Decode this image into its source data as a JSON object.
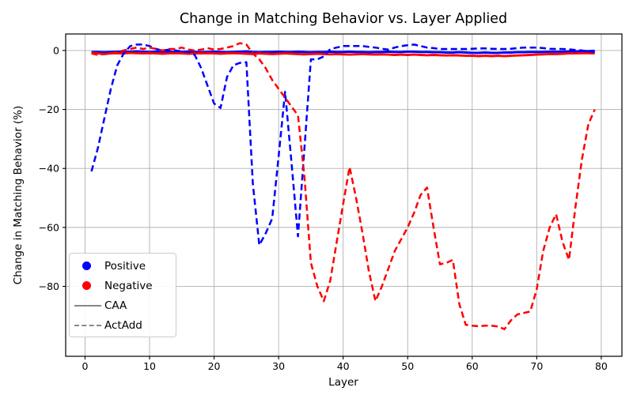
{
  "figure": {
    "title": "Change in Matching Behavior vs. Layer Applied",
    "xlabel": "Layer",
    "ylabel": "Change in Matching Behavior (%)"
  },
  "legend": {
    "entries": [
      {
        "label": "Positive",
        "marker": "dot",
        "color": "#0000ff"
      },
      {
        "label": "Negative",
        "marker": "dot",
        "color": "#ff0000"
      },
      {
        "label": "CAA",
        "marker": "line-solid",
        "color": "#888888"
      },
      {
        "label": "ActAdd",
        "marker": "line-dashed",
        "color": "#888888"
      }
    ]
  },
  "chart_data": {
    "type": "line",
    "title": "Change in Matching Behavior vs. Layer Applied",
    "xlabel": "Layer",
    "ylabel": "Change in Matching Behavior (%)",
    "grid": true,
    "legend_position": "lower left",
    "x_ticks": [
      0,
      10,
      20,
      30,
      40,
      50,
      60,
      70,
      80
    ],
    "y_ticks": {
      "values": [
        0,
        -20,
        -40,
        -60,
        -80
      ],
      "labels": [
        "0",
        "−20",
        "−40",
        "−60",
        "−80"
      ]
    },
    "xlim": [
      -3,
      83.2
    ],
    "ylim": [
      -103.7,
      5.6
    ],
    "x": [
      1,
      2,
      3,
      4,
      5,
      6,
      7,
      8,
      9,
      10,
      11,
      12,
      13,
      14,
      15,
      16,
      17,
      18,
      19,
      20,
      21,
      22,
      23,
      24,
      25,
      26,
      27,
      28,
      29,
      30,
      31,
      32,
      33,
      34,
      35,
      36,
      37,
      38,
      39,
      40,
      41,
      42,
      43,
      44,
      45,
      46,
      47,
      48,
      49,
      50,
      51,
      52,
      53,
      54,
      55,
      56,
      57,
      58,
      59,
      60,
      61,
      62,
      63,
      64,
      65,
      66,
      67,
      68,
      69,
      70,
      71,
      72,
      73,
      74,
      75,
      76,
      77,
      78,
      79
    ],
    "series": [
      {
        "name": "Positive CAA",
        "color": "#0000ff",
        "style": "solid",
        "values": [
          -0.5,
          -0.5,
          -0.6,
          -0.5,
          -0.4,
          -0.5,
          -0.4,
          -0.3,
          -0.4,
          -0.5,
          -0.4,
          -0.3,
          -0.4,
          -0.5,
          -0.5,
          -0.4,
          -0.5,
          -0.6,
          -0.5,
          -0.4,
          -0.5,
          -0.6,
          -0.5,
          -0.4,
          -0.3,
          -0.5,
          -0.6,
          -0.5,
          -0.5,
          -0.4,
          -0.5,
          -0.5,
          -0.4,
          -0.5,
          -0.6,
          -0.5,
          -0.5,
          -0.4,
          -0.5,
          -0.5,
          -0.4,
          -0.5,
          -0.5,
          -0.6,
          -0.5,
          -0.5,
          -0.4,
          -0.5,
          -0.5,
          -0.4,
          -0.4,
          -0.5,
          -0.5,
          -0.6,
          -0.6,
          -0.7,
          -0.7,
          -0.6,
          -0.7,
          -0.8,
          -0.8,
          -0.7,
          -0.8,
          -0.8,
          -0.7,
          -0.7,
          -0.6,
          -0.6,
          -0.5,
          -0.5,
          -0.5,
          -0.4,
          -0.4,
          -0.4,
          -0.3,
          -0.3,
          -0.2,
          -0.2,
          -0.1
        ]
      },
      {
        "name": "Negative CAA",
        "color": "#ff0000",
        "style": "solid",
        "values": [
          -0.8,
          -1.0,
          -1.2,
          -1.0,
          -0.9,
          -1.0,
          -0.8,
          -0.9,
          -1.0,
          -0.9,
          -1.0,
          -1.1,
          -1.0,
          -0.9,
          -1.0,
          -1.1,
          -1.0,
          -1.0,
          -0.9,
          -1.0,
          -1.1,
          -1.0,
          -0.9,
          -1.0,
          -1.1,
          -1.2,
          -1.0,
          -1.1,
          -1.2,
          -1.1,
          -1.0,
          -1.1,
          -1.2,
          -1.3,
          -1.2,
          -1.1,
          -1.2,
          -1.3,
          -1.2,
          -1.3,
          -1.4,
          -1.3,
          -1.2,
          -1.3,
          -1.4,
          -1.3,
          -1.4,
          -1.5,
          -1.4,
          -1.5,
          -1.4,
          -1.5,
          -1.6,
          -1.5,
          -1.6,
          -1.7,
          -1.6,
          -1.7,
          -1.8,
          -1.8,
          -1.9,
          -1.8,
          -1.9,
          -1.8,
          -1.9,
          -1.8,
          -1.7,
          -1.6,
          -1.5,
          -1.4,
          -1.3,
          -1.2,
          -1.2,
          -1.1,
          -1.0,
          -1.0,
          -0.9,
          -0.9,
          -1.0
        ]
      },
      {
        "name": "Positive ActAdd",
        "color": "#0000ff",
        "style": "dashed",
        "values": [
          -41,
          -33,
          -23,
          -13,
          -5,
          -1,
          1.5,
          2,
          2,
          1.5,
          0.5,
          0,
          0.3,
          0,
          -0.3,
          -0.5,
          -1.5,
          -6,
          -12,
          -18,
          -19.5,
          -9,
          -5,
          -4.2,
          -4,
          -45,
          -66,
          -62,
          -57,
          -36,
          -14,
          -38,
          -63,
          -33,
          -3,
          -3,
          -2,
          0.5,
          1,
          1.5,
          1.5,
          1.5,
          1.5,
          1.2,
          1,
          0.6,
          0.3,
          1,
          1.5,
          1.8,
          2,
          1.5,
          1,
          0.8,
          0.5,
          0.5,
          0.5,
          0.5,
          0.5,
          0.6,
          0.7,
          0.7,
          0.6,
          0.5,
          0.5,
          0.6,
          0.8,
          1,
          1,
          1,
          0.8,
          0.6,
          0.5,
          0.5,
          0.4,
          0.2,
          0,
          -0.3,
          -0.5
        ]
      },
      {
        "name": "Negative ActAdd",
        "color": "#ff0000",
        "style": "dashed",
        "values": [
          -1,
          -1.5,
          -1.2,
          -1,
          -0.5,
          0,
          0.5,
          1,
          0.5,
          1,
          0.5,
          0,
          0.5,
          0.5,
          1,
          0.3,
          0,
          0.3,
          0.8,
          0.3,
          0.5,
          1,
          1.5,
          2.5,
          2,
          -1,
          -3,
          -6,
          -10,
          -13,
          -16,
          -19,
          -22,
          -43,
          -72,
          -80,
          -85,
          -78,
          -65,
          -52,
          -39.5,
          -50,
          -62,
          -75,
          -85,
          -80,
          -74,
          -68,
          -64,
          -60,
          -55,
          -49,
          -46.5,
          -60,
          -72.5,
          -72,
          -71,
          -86,
          -93,
          -93.3,
          -93.5,
          -93.3,
          -93.3,
          -93.6,
          -94.5,
          -91.5,
          -89.5,
          -89,
          -88.5,
          -81,
          -68,
          -60,
          -55.5,
          -65,
          -71,
          -53,
          -37,
          -25,
          -20
        ]
      }
    ]
  }
}
